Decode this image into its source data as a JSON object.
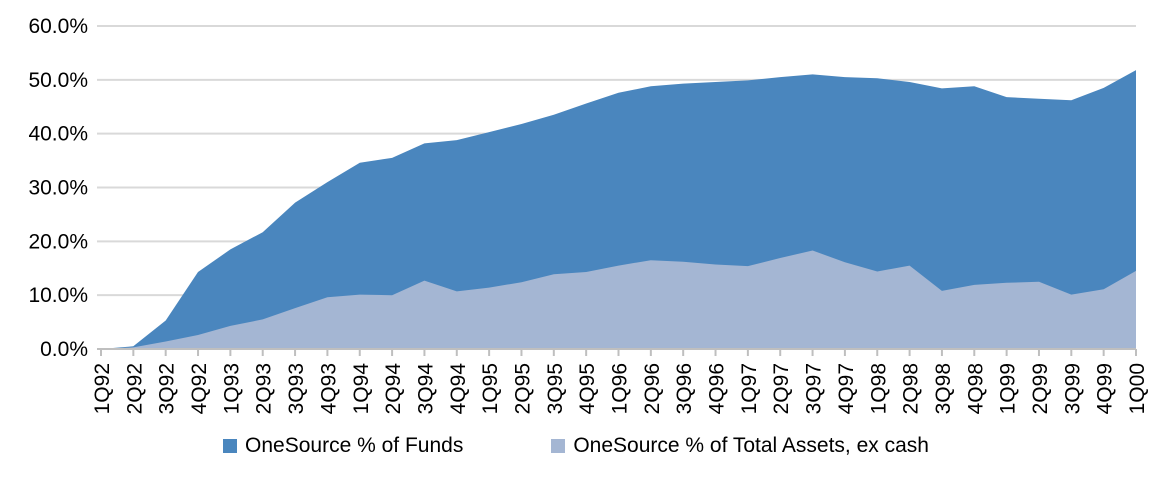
{
  "chart_data": {
    "type": "area",
    "x": [
      "1Q92",
      "2Q92",
      "3Q92",
      "4Q92",
      "1Q93",
      "2Q93",
      "3Q93",
      "4Q93",
      "1Q94",
      "2Q94",
      "3Q94",
      "4Q94",
      "1Q95",
      "2Q95",
      "3Q95",
      "4Q95",
      "1Q96",
      "2Q96",
      "3Q96",
      "4Q96",
      "1Q97",
      "2Q97",
      "3Q97",
      "4Q97",
      "1Q98",
      "2Q98",
      "3Q98",
      "4Q98",
      "1Q99",
      "2Q99",
      "3Q99",
      "4Q99",
      "1Q00"
    ],
    "series": [
      {
        "name": "OneSource % of Funds",
        "color": "#4A86BE",
        "values": [
          0.0,
          0.5,
          5.3,
          14.3,
          18.5,
          21.7,
          27.2,
          31.0,
          34.6,
          35.5,
          38.2,
          38.8,
          40.3,
          41.8,
          43.5,
          45.6,
          47.6,
          48.8,
          49.3,
          49.6,
          49.9,
          50.5,
          51.0,
          50.5,
          50.3,
          49.6,
          48.4,
          48.8,
          46.8,
          46.5,
          46.2,
          48.5,
          51.8
        ]
      },
      {
        "name": "OneSource % of Total Assets, ex cash",
        "color": "#A4B6D3",
        "values": [
          0.0,
          0.3,
          1.4,
          2.6,
          4.3,
          5.5,
          7.6,
          9.6,
          10.1,
          10.0,
          12.7,
          10.7,
          11.4,
          12.4,
          13.9,
          14.3,
          15.5,
          16.5,
          16.2,
          15.7,
          15.4,
          16.9,
          18.3,
          16.1,
          14.4,
          15.5,
          10.8,
          11.9,
          12.3,
          12.5,
          10.1,
          11.1,
          14.5
        ]
      }
    ],
    "title": "",
    "xlabel": "",
    "ylabel": "",
    "ylim": [
      0,
      60
    ],
    "y_tick_labels": [
      "0.0%",
      "10.0%",
      "20.0%",
      "30.0%",
      "40.0%",
      "50.0%",
      "60.0%"
    ],
    "grid": "horizontal",
    "legend_position": "bottom-center",
    "gridline_color": "#D9D9D9",
    "axis_color": "#BFBFBF"
  }
}
